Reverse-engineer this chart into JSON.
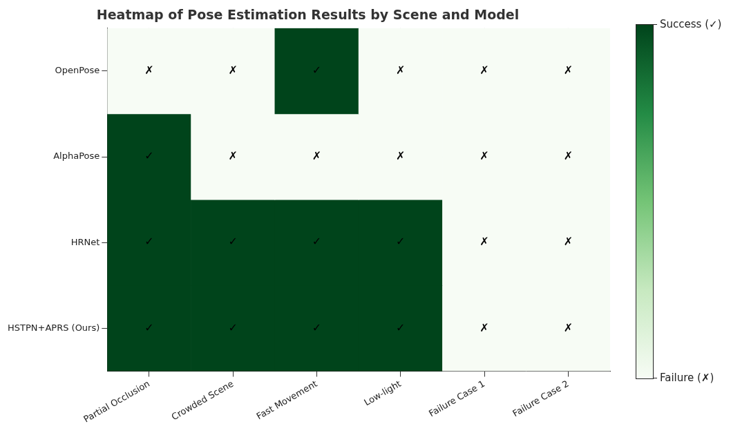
{
  "chart_data": {
    "type": "heatmap",
    "title": "Heatmap of Pose Estimation Results by Scene and Model",
    "categories": [
      "Partial Occlusion",
      "Crowded Scene",
      "Fast Movement",
      "Low-light",
      "Failure Case 1",
      "Failure Case 2"
    ],
    "y_categories": [
      "OpenPose",
      "AlphaPose",
      "HRNet",
      "HSTPN+APRS (Ours)"
    ],
    "cells": [
      [
        0,
        0,
        1,
        0,
        0,
        0
      ],
      [
        1,
        0,
        0,
        0,
        0,
        0
      ],
      [
        1,
        1,
        1,
        1,
        0,
        0
      ],
      [
        1,
        1,
        1,
        1,
        0,
        0
      ]
    ],
    "cell_labels": [
      [
        "✗",
        "✗",
        "✓",
        "✗",
        "✗",
        "✗"
      ],
      [
        "✓",
        "✗",
        "✗",
        "✗",
        "✗",
        "✗"
      ],
      [
        "✓",
        "✓",
        "✓",
        "✓",
        "✗",
        "✗"
      ],
      [
        "✓",
        "✓",
        "✓",
        "✓",
        "✗",
        "✗"
      ]
    ],
    "clim": [
      0,
      1
    ],
    "cticks": [
      {
        "value": 0,
        "label": "Failure (✗)"
      },
      {
        "value": 1,
        "label": "Success (✓)"
      }
    ],
    "grid": true
  }
}
